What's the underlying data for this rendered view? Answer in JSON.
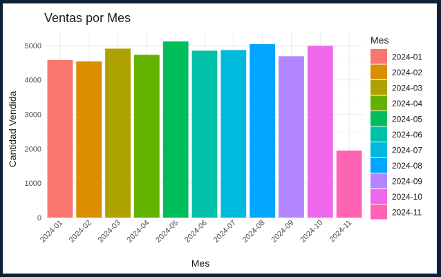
{
  "chart_data": {
    "type": "bar",
    "title": "Ventas por Mes",
    "xlabel": "Mes",
    "ylabel": "Cantidad Vendida",
    "legend_title": "Mes",
    "legend_position": "right",
    "grid": true,
    "ylim": [
      0,
      5400
    ],
    "yticks": [
      0,
      1000,
      2000,
      3000,
      4000,
      5000
    ],
    "categories": [
      "2024-01",
      "2024-02",
      "2024-03",
      "2024-04",
      "2024-05",
      "2024-06",
      "2024-07",
      "2024-08",
      "2024-09",
      "2024-10",
      "2024-11"
    ],
    "values": [
      4580,
      4540,
      4910,
      4730,
      5120,
      4850,
      4870,
      5040,
      4690,
      4990,
      1950
    ],
    "colors": [
      "#F8766D",
      "#DB8E00",
      "#AEA200",
      "#64B200",
      "#00BD5C",
      "#00C1A7",
      "#00BADE",
      "#00A6FF",
      "#B385FF",
      "#EF67EB",
      "#FF63B6"
    ]
  }
}
